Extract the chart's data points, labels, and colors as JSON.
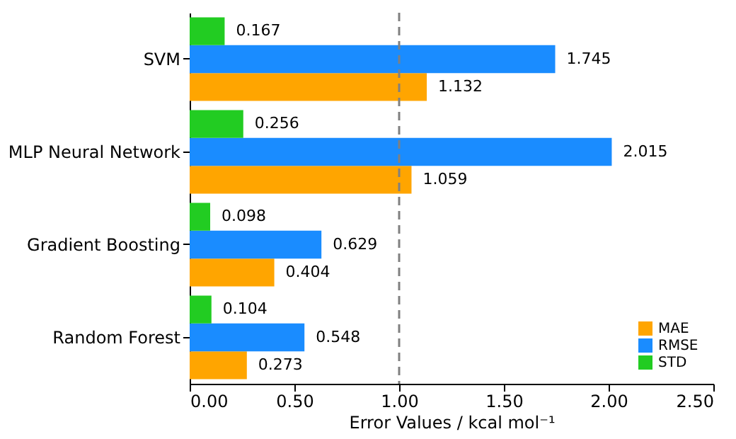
{
  "chart_data": {
    "type": "bar",
    "orientation": "horizontal",
    "xlabel": "Error Values / kcal mol⁻¹",
    "categories": [
      "SVM",
      "MLP Neural Network",
      "Gradient Boosting",
      "Random Forest"
    ],
    "series": [
      {
        "name": "MAE",
        "color": "#ffa500",
        "values": [
          1.132,
          1.059,
          0.404,
          0.273
        ]
      },
      {
        "name": "RMSE",
        "color": "#1a8cff",
        "values": [
          1.745,
          2.015,
          0.629,
          0.548
        ]
      },
      {
        "name": "STD",
        "color": "#22cc22",
        "values": [
          0.167,
          0.256,
          0.098,
          0.104
        ]
      }
    ],
    "xlim": [
      0,
      2.5
    ],
    "xticks": [
      {
        "value": 0,
        "label": "0.00"
      },
      {
        "value": 0.5,
        "label": "0.50"
      },
      {
        "value": 1,
        "label": "1.00"
      },
      {
        "value": 1.5,
        "label": "1.50"
      },
      {
        "value": 2,
        "label": "2.00"
      },
      {
        "value": 2.5,
        "label": "2.50"
      }
    ],
    "ref_lines": [
      {
        "axis": "x",
        "value": 1,
        "label": null,
        "color": "#808080",
        "line_style": "dashed"
      }
    ],
    "data_labels": true,
    "grid": false,
    "legend": "bottom right"
  }
}
